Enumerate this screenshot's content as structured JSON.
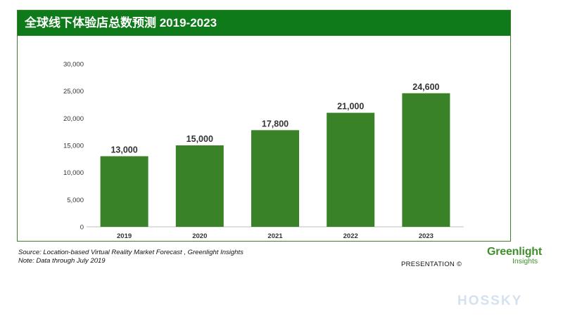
{
  "header": {
    "title": "全球线下体验店总数预测 2019-2023"
  },
  "chart_data": {
    "type": "bar",
    "categories": [
      "2019",
      "2020",
      "2021",
      "2022",
      "2023"
    ],
    "values": [
      13000,
      15000,
      17800,
      21000,
      24600
    ],
    "value_labels": [
      "13,000",
      "15,000",
      "17,800",
      "21,000",
      "24,600"
    ],
    "yticks": [
      "0",
      "5,000",
      "10,000",
      "15,000",
      "20,000",
      "25,000",
      "30,000"
    ],
    "ylim": [
      0,
      30000
    ],
    "grid": false,
    "bar_color": "#3a8228"
  },
  "footer": {
    "source": "Source: Location-based Virtual Reality Market Forecast , Greenlight Insights",
    "note": "Note: Data through July 2019",
    "presentation": "PRESENTATION ©"
  },
  "logo": {
    "main": "Greenlight",
    "sub": "Insights"
  },
  "watermark": {
    "text": "HOSSKY"
  }
}
